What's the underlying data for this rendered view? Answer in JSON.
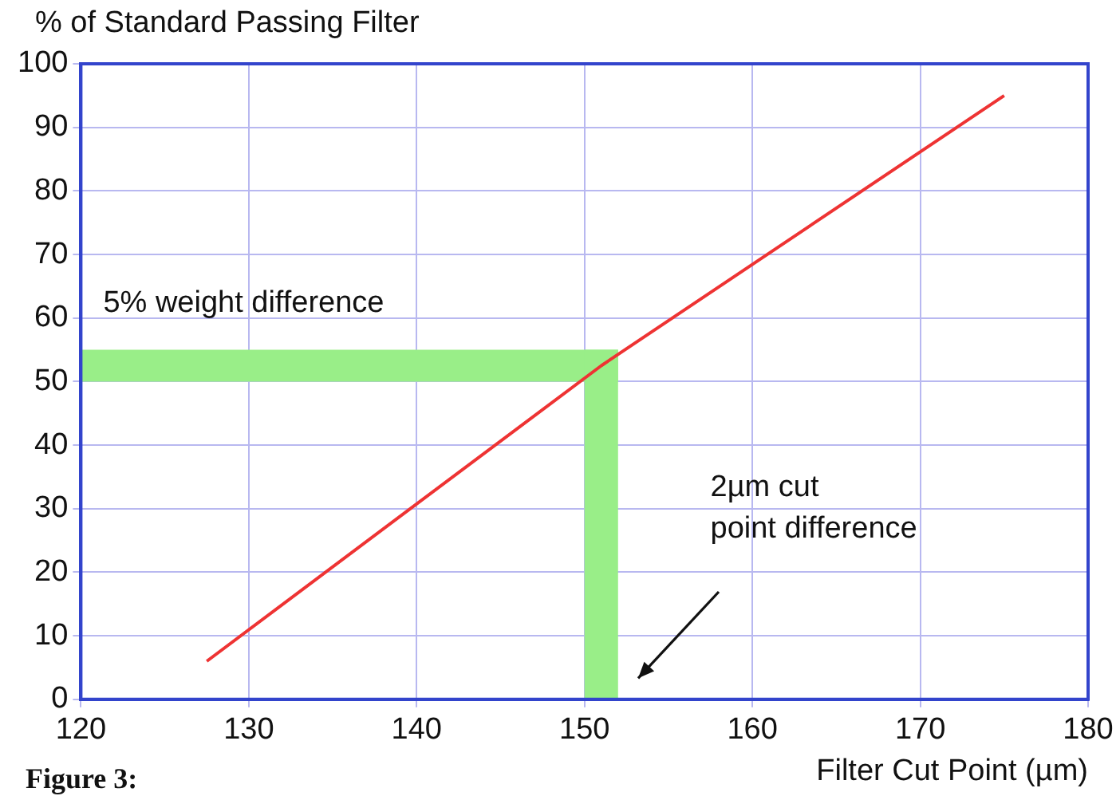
{
  "chart_data": {
    "type": "line",
    "ylabel": "% of Standard Passing Filter",
    "xlabel": "Filter Cut Point (µm)",
    "xlim": [
      120,
      180
    ],
    "xticks": [
      120,
      130,
      140,
      150,
      160,
      170,
      180
    ],
    "ylim": [
      0,
      100
    ],
    "yticks": [
      0,
      10,
      20,
      30,
      40,
      50,
      60,
      70,
      80,
      90,
      100
    ],
    "grid": true,
    "legend": false,
    "marker": "none",
    "line_style": "solid",
    "series": [
      {
        "color": "#ee3333",
        "x": [
          127.5,
          151,
          175
        ],
        "values": [
          6,
          52.5,
          95
        ]
      }
    ],
    "bands": [
      {
        "axis": "y",
        "from": 50,
        "to": 55,
        "color": "#99ee88"
      },
      {
        "axis": "x",
        "from": 150,
        "to": 152,
        "color": "#99ee88"
      }
    ],
    "annotations": [
      "5% weight difference",
      "2µm cut point difference",
      "Figure 3:"
    ]
  }
}
